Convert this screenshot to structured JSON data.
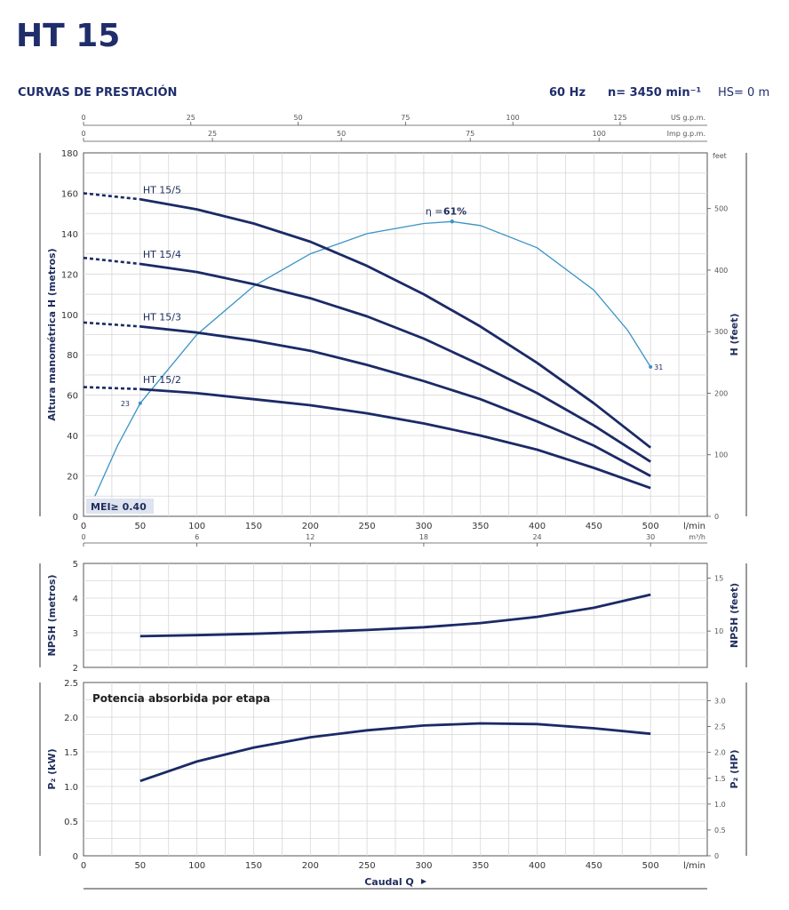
{
  "header": {
    "model": "HT 15",
    "subtitle": "CURVAS DE PRESTACIÓN",
    "frequency": "60 Hz",
    "speed": "n= 3450 min⁻¹",
    "hs": "HS= 0 m"
  },
  "colors": {
    "curve": "#1b2a66",
    "efficiency": "#3a93c6",
    "grid": "#d7d7d7",
    "mei_box": "#dde3ef"
  },
  "chart_data": [
    {
      "type": "line",
      "panel": "head",
      "xlabel_unit": "l/min",
      "ylabel": "Altura manométrica H (metros)",
      "ylabel_right": "H (feet)",
      "right_unit": "feet",
      "xlim": [
        0,
        550
      ],
      "ylim": [
        0,
        180
      ],
      "x_ticks": [
        "0",
        "50",
        "100",
        "150",
        "200",
        "250",
        "300",
        "350",
        "400",
        "450",
        "500"
      ],
      "y_ticks": [
        "0",
        "20",
        "40",
        "60",
        "80",
        "100",
        "120",
        "140",
        "160",
        "180"
      ],
      "right_ticks": [
        "0",
        "100",
        "200",
        "300",
        "400",
        "500"
      ],
      "top_axes": [
        {
          "unit": "US g.p.m.",
          "ticks": [
            "0",
            "25",
            "50",
            "75",
            "100",
            "125"
          ]
        },
        {
          "unit": "Imp g.p.m.",
          "ticks": [
            "0",
            "25",
            "50",
            "75",
            "100"
          ]
        }
      ],
      "bottom_axis2": {
        "unit": "m³/h",
        "ticks": [
          "0",
          "6",
          "12",
          "18",
          "24",
          "30"
        ]
      },
      "series": [
        {
          "name": "HT 15/5",
          "x": [
            50,
            100,
            150,
            200,
            250,
            300,
            350,
            400,
            450,
            500
          ],
          "y": [
            157,
            152,
            145,
            136,
            124,
            110,
            94,
            76,
            56,
            34
          ],
          "dashed_from": [
            0,
            160
          ]
        },
        {
          "name": "HT 15/4",
          "x": [
            50,
            100,
            150,
            200,
            250,
            300,
            350,
            400,
            450,
            500
          ],
          "y": [
            125,
            121,
            115,
            108,
            99,
            88,
            75,
            61,
            45,
            27
          ],
          "dashed_from": [
            0,
            128
          ]
        },
        {
          "name": "HT 15/3",
          "x": [
            50,
            100,
            150,
            200,
            250,
            300,
            350,
            400,
            450,
            500
          ],
          "y": [
            94,
            91,
            87,
            82,
            75,
            67,
            58,
            47,
            35,
            20
          ],
          "dashed_from": [
            0,
            96
          ]
        },
        {
          "name": "HT 15/2",
          "x": [
            50,
            100,
            150,
            200,
            250,
            300,
            350,
            400,
            450,
            500
          ],
          "y": [
            63,
            61,
            58,
            55,
            51,
            46,
            40,
            33,
            24,
            14
          ],
          "dashed_from": [
            0,
            64
          ]
        }
      ],
      "efficiency": {
        "label": "η = ",
        "value": "61%",
        "x": [
          10,
          30,
          50,
          100,
          150,
          200,
          250,
          300,
          325,
          350,
          400,
          450,
          480,
          500
        ],
        "y": [
          10,
          35,
          56,
          90,
          114,
          130,
          140,
          145,
          146,
          144,
          133,
          112,
          92,
          74
        ],
        "points": [
          {
            "label": "23",
            "x": 50,
            "y": 56
          },
          {
            "label": "31",
            "x": 500,
            "y": 74
          }
        ]
      },
      "mei": "MEI≥ 0.40"
    },
    {
      "type": "line",
      "panel": "npsh",
      "ylabel": "NPSH (metros)",
      "ylabel_right": "NPSH (feet)",
      "xlim": [
        0,
        550
      ],
      "ylim": [
        2,
        5
      ],
      "y_ticks": [
        "2",
        "3",
        "4",
        "5"
      ],
      "right_ticks": [
        "10",
        "15"
      ],
      "series": [
        {
          "name": "",
          "x": [
            50,
            100,
            150,
            200,
            250,
            300,
            350,
            400,
            450,
            500
          ],
          "y": [
            2.9,
            2.93,
            2.97,
            3.02,
            3.08,
            3.16,
            3.28,
            3.46,
            3.72,
            4.1
          ]
        }
      ]
    },
    {
      "type": "line",
      "panel": "power",
      "title": "Potencia absorbida por etapa",
      "xlabel": "Caudal Q",
      "xlabel_unit": "l/min",
      "ylabel": "P₂ (kW)",
      "ylabel_right": "P₂ (HP)",
      "xlim": [
        0,
        550
      ],
      "ylim": [
        0,
        2.5
      ],
      "x_ticks": [
        "0",
        "50",
        "100",
        "150",
        "200",
        "250",
        "300",
        "350",
        "400",
        "450",
        "500"
      ],
      "y_ticks": [
        "0",
        "0.5",
        "1.0",
        "1.5",
        "2.0",
        "2.5"
      ],
      "right_ticks": [
        "0",
        "0.5",
        "1.0",
        "1.5",
        "2.0",
        "2.5",
        "3.0"
      ],
      "series": [
        {
          "name": "",
          "x": [
            50,
            100,
            150,
            200,
            250,
            300,
            350,
            400,
            450,
            500
          ],
          "y": [
            1.08,
            1.36,
            1.56,
            1.71,
            1.81,
            1.88,
            1.91,
            1.9,
            1.84,
            1.76
          ]
        }
      ]
    }
  ]
}
